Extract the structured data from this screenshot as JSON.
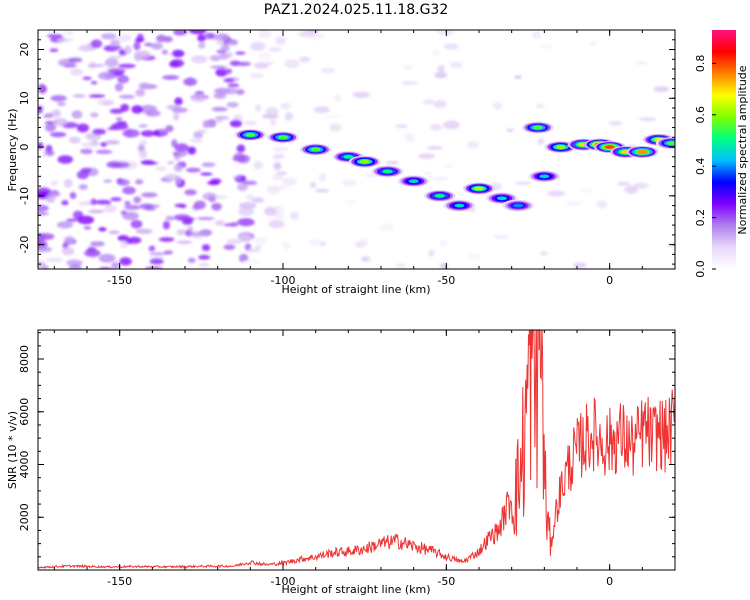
{
  "figure_title": "PAZ1.2024.025.11.18.G32",
  "chart_data": [
    {
      "type": "heatmap",
      "xlabel": "Height of straight line (km)",
      "ylabel": "Frequency (Hz)",
      "xlim": [
        -175,
        20
      ],
      "ylim": [
        -25,
        24
      ],
      "xticks": [
        -150,
        -100,
        -50,
        0
      ],
      "yticks": [
        -20,
        -10,
        0,
        10,
        20
      ],
      "colorbar": {
        "label": "Normalized spectral amplitude",
        "range": [
          0.0,
          0.93
        ],
        "ticks": [
          0.0,
          0.2,
          0.4,
          0.6,
          0.8
        ],
        "colormap": [
          "#ffffff",
          "#e8d8f8",
          "#b07ff0",
          "#7f00ff",
          "#0000ff",
          "#00c0ff",
          "#00ff80",
          "#80ff00",
          "#ffff00",
          "#ff8000",
          "#ff0000",
          "#ff1080"
        ]
      },
      "ridge": [
        {
          "x": -110,
          "y": 2.5,
          "a": 0.55
        },
        {
          "x": -100,
          "y": 2.0,
          "a": 0.55
        },
        {
          "x": -90,
          "y": -0.5,
          "a": 0.55
        },
        {
          "x": -80,
          "y": -2.0,
          "a": 0.5
        },
        {
          "x": -75,
          "y": -3.0,
          "a": 0.6
        },
        {
          "x": -68,
          "y": -5.0,
          "a": 0.5
        },
        {
          "x": -60,
          "y": -7.0,
          "a": 0.45
        },
        {
          "x": -52,
          "y": -10.0,
          "a": 0.5
        },
        {
          "x": -46,
          "y": -12.0,
          "a": 0.45
        },
        {
          "x": -40,
          "y": -8.5,
          "a": 0.62
        },
        {
          "x": -33,
          "y": -10.5,
          "a": 0.45
        },
        {
          "x": -28,
          "y": -12.0,
          "a": 0.4
        },
        {
          "x": -22,
          "y": 4.0,
          "a": 0.55
        },
        {
          "x": -20,
          "y": -6.0,
          "a": 0.45
        },
        {
          "x": -15,
          "y": 0.0,
          "a": 0.6
        },
        {
          "x": -8,
          "y": 0.5,
          "a": 0.7
        },
        {
          "x": -3,
          "y": 0.5,
          "a": 0.85
        },
        {
          "x": 0,
          "y": 0.0,
          "a": 0.8
        },
        {
          "x": 5,
          "y": -1.0,
          "a": 0.7
        },
        {
          "x": 10,
          "y": -1.0,
          "a": 0.75
        },
        {
          "x": 15,
          "y": 1.5,
          "a": 0.65
        },
        {
          "x": 19,
          "y": 0.8,
          "a": 0.55
        }
      ]
    },
    {
      "type": "line",
      "xlabel": "Height of straight line (km)",
      "ylabel": "SNR (10 * v/v)",
      "xlim": [
        -175,
        20
      ],
      "ylim": [
        0,
        9100
      ],
      "xticks": [
        -150,
        -100,
        -50,
        0
      ],
      "yticks": [
        2000,
        4000,
        6000,
        8000
      ],
      "line_color": "#ee3333",
      "series": [
        {
          "x": [
            -175,
            -165,
            -155,
            -145,
            -135,
            -125,
            -115,
            -110,
            -105,
            -100,
            -95,
            -90,
            -85,
            -80,
            -75,
            -70,
            -65,
            -60,
            -55,
            -50,
            -45,
            -40,
            -37,
            -34,
            -31,
            -28,
            -26,
            -25,
            -24,
            -23,
            -22,
            -21,
            -20,
            -19,
            -18,
            -17,
            -16,
            -15,
            -13,
            -11,
            -9,
            -7,
            -5,
            -3,
            -1,
            1,
            3,
            5,
            7,
            9,
            11,
            13,
            15,
            17,
            20
          ],
          "y": [
            100,
            150,
            120,
            130,
            120,
            140,
            150,
            300,
            200,
            260,
            400,
            500,
            650,
            700,
            800,
            1000,
            1100,
            900,
            750,
            500,
            300,
            700,
            1200,
            1500,
            2500,
            3200,
            5000,
            7000,
            8500,
            6000,
            8800,
            9000,
            3500,
            1800,
            900,
            1800,
            2500,
            3000,
            3800,
            4300,
            4700,
            5000,
            5200,
            4900,
            4800,
            4900,
            5100,
            4900,
            4700,
            5000,
            5400,
            4900,
            5300,
            5000,
            5600
          ]
        }
      ]
    }
  ]
}
